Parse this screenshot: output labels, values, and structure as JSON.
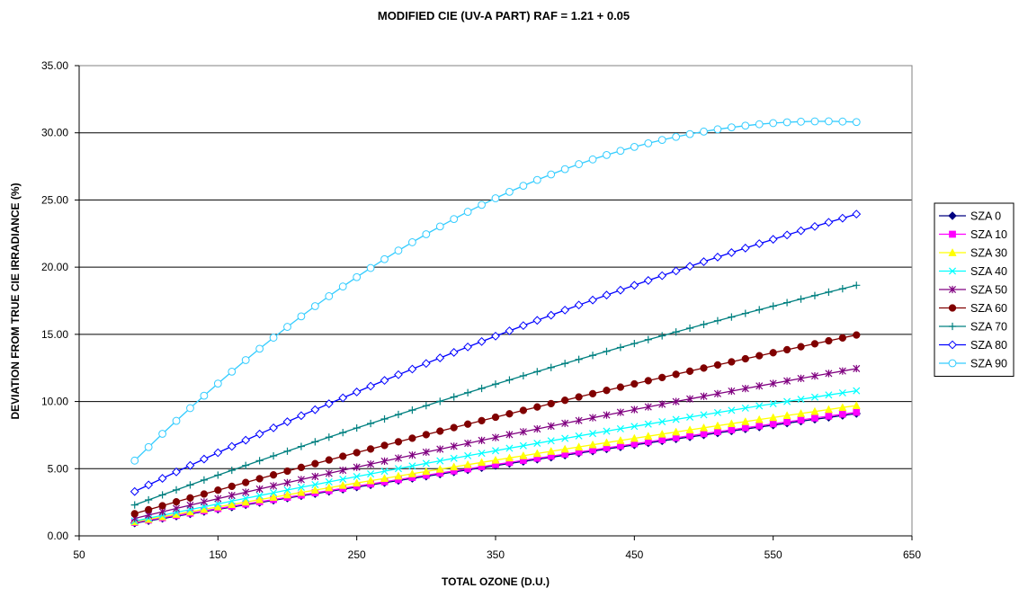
{
  "chart_data": {
    "type": "line",
    "title": "MODIFIED CIE (UV-A PART) RAF = 1.21 + 0.05",
    "xlabel": "TOTAL OZONE (D.U.)",
    "ylabel": "DEVIATION FROM TRUE CIE IRRADIANCE (%)",
    "xlim": [
      50,
      650
    ],
    "ylim": [
      0,
      35
    ],
    "x_ticks": [
      "50",
      "150",
      "250",
      "350",
      "450",
      "550",
      "650"
    ],
    "y_ticks": [
      "0.00",
      "5.00",
      "10.00",
      "15.00",
      "20.00",
      "25.00",
      "30.00",
      "35.00"
    ],
    "grid": "horizontal",
    "legend_position": "right",
    "x_range": {
      "start": 90,
      "end": 610,
      "step": 10
    },
    "series": [
      {
        "name": "SZA 0",
        "color": "#000080",
        "marker": "diamond-filled",
        "y_start": 0.95,
        "y_end": 9.1,
        "curve": 0.05
      },
      {
        "name": "SZA 10",
        "color": "#ff00ff",
        "marker": "square-filled",
        "y_start": 1.0,
        "y_end": 9.2,
        "curve": 0.05
      },
      {
        "name": "SZA 30",
        "color": "#ffff00",
        "marker": "triangle-filled",
        "y_start": 1.05,
        "y_end": 9.7,
        "curve": 0.06
      },
      {
        "name": "SZA 40",
        "color": "#00ffff",
        "marker": "x",
        "y_start": 1.1,
        "y_end": 10.8,
        "curve": 0.08
      },
      {
        "name": "SZA 50",
        "color": "#800080",
        "marker": "star",
        "y_start": 1.3,
        "y_end": 12.45,
        "curve": 0.08
      },
      {
        "name": "SZA 60",
        "color": "#800000",
        "marker": "circle-filled",
        "y_start": 1.65,
        "y_end": 14.95,
        "curve": 0.08
      },
      {
        "name": "SZA 70",
        "color": "#008080",
        "marker": "plus",
        "y_start": 2.3,
        "y_end": 18.65,
        "curve": 0.1
      },
      {
        "name": "SZA 80",
        "color": "#0000ff",
        "marker": "diamond-open",
        "y_start": 3.3,
        "y_end": 23.95,
        "curve": 0.12
      },
      {
        "name": "SZA 90",
        "color": "#33ccff",
        "marker": "circle-open",
        "y_start": 5.6,
        "y_end": 30.8,
        "curve": 0.55
      }
    ]
  }
}
